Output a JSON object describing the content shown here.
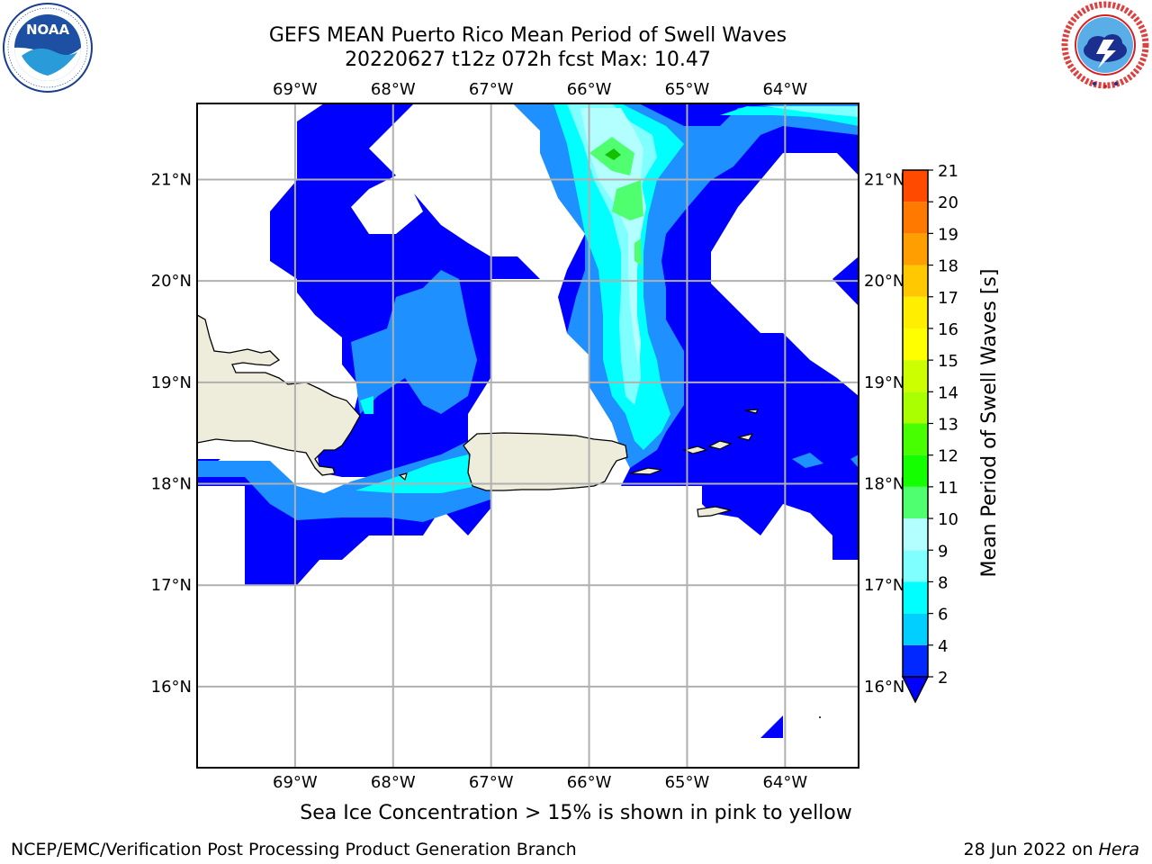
{
  "header": {
    "title_line1": "GEFS MEAN Puerto Rico Mean Period of Swell Waves",
    "title_line2": "20220627 t12z 072h fcst   Max: 10.47"
  },
  "footer": {
    "center": "Sea Ice Concentration > 15% is shown in pink to yellow",
    "left": "NCEP/EMC/Verification Post Processing Product Generation Branch",
    "right_date": "28 Jun 2022 on ",
    "right_host": "Hera"
  },
  "logos": {
    "noaa": {
      "text": "NOAA",
      "ring_text": "NATIONAL OCEANIC AND ATMOSPHERIC ADMINISTRATION · U.S. DEPARTMENT OF COMMERCE"
    },
    "nws": {
      "ring_text": "NATIONAL WEATHER SERVICE"
    }
  },
  "chart_data": {
    "type": "heatmap",
    "title": "GEFS MEAN Puerto Rico Mean Period of Swell Waves",
    "subtitle": "20220627 t12z 072h fcst   Max: 10.47",
    "max_value": 10.47,
    "x_axis": {
      "ticks": [
        -69,
        -68,
        -67,
        -66,
        -65,
        -64
      ],
      "tick_labels": [
        "69°W",
        "68°W",
        "67°W",
        "66°W",
        "65°W",
        "64°W"
      ],
      "range": [
        -70,
        -63.25
      ]
    },
    "y_axis": {
      "ticks": [
        16,
        17,
        18,
        19,
        20,
        21
      ],
      "tick_labels": [
        "16°N",
        "17°N",
        "18°N",
        "19°N",
        "20°N",
        "21°N"
      ],
      "range": [
        15.2,
        21.75
      ]
    },
    "grid": true,
    "colorbar": {
      "label": "Mean Period of Swell Waves [s]",
      "levels": [
        2,
        4,
        6,
        8,
        9,
        10,
        11,
        12,
        13,
        14,
        15,
        16,
        17,
        18,
        19,
        20,
        21
      ],
      "tick_labels": [
        "2",
        "4",
        "6",
        "8",
        "9",
        "10",
        "11",
        "12",
        "13",
        "14",
        "15",
        "16",
        "17",
        "18",
        "19",
        "20",
        "21"
      ],
      "colors": [
        "#0028ff",
        "#00cfff",
        "#00ffff",
        "#7fffff",
        "#b3ffff",
        "#50ff70",
        "#14ff00",
        "#48ff00",
        "#aaff00",
        "#ccff00",
        "#ffff00",
        "#ffee00",
        "#ffc800",
        "#ff9e00",
        "#ff7800",
        "#ff4a00",
        "#ff0a00"
      ],
      "under_color": "#0000ff",
      "extend": "min"
    },
    "shading": {
      "band_2_4": "#0000ff",
      "band_4_6": "#1e90ff",
      "band_6_8": "#00ffff",
      "band_8_9": "#7fffff",
      "band_9_10": "#b3ffff",
      "band_10_11": "#50ff70",
      "band_11_plus": "#14c000"
    },
    "land_color": "#eeeddc",
    "regions": [
      "Hispaniola (east)",
      "Puerto Rico",
      "Virgin Islands",
      "St. Croix"
    ]
  }
}
